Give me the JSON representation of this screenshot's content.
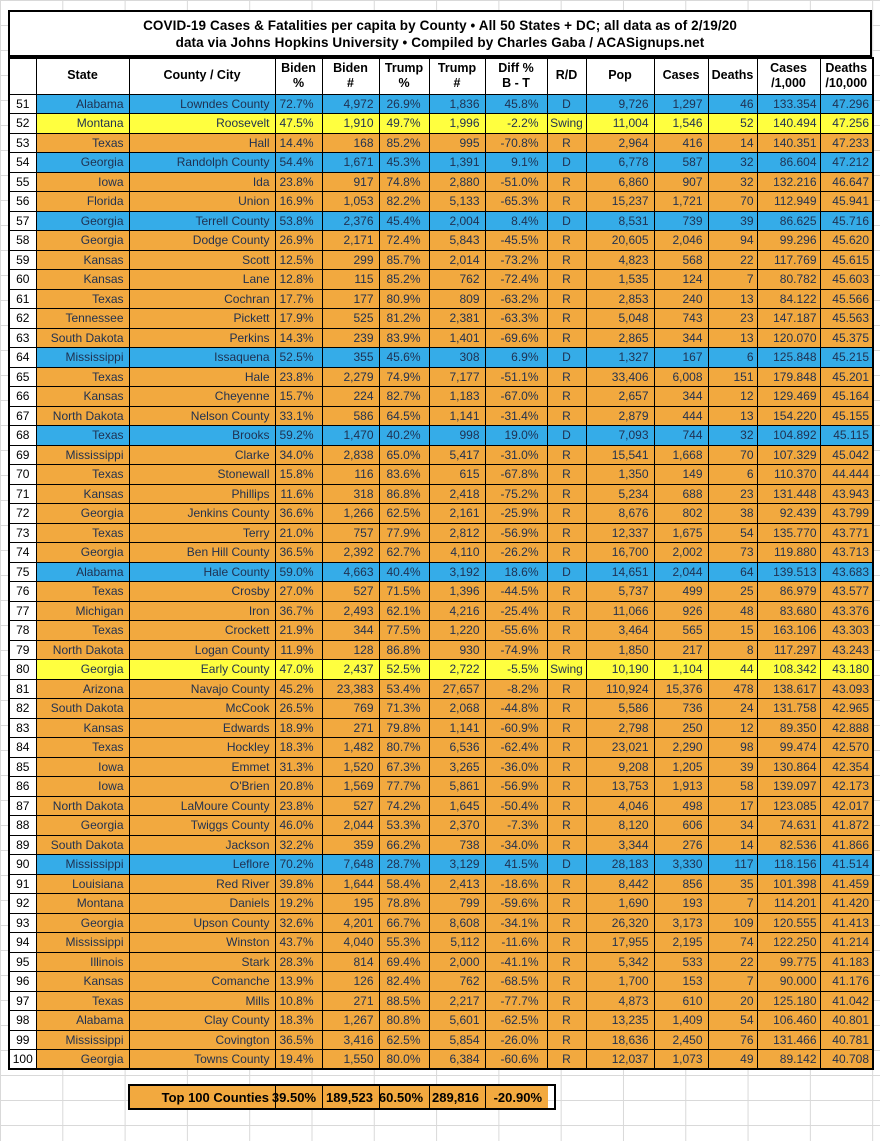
{
  "title": {
    "line1": "COVID-19 Cases & Fatalities per capita by County • All 50 States + DC; all data as of 2/19/20",
    "line2": "data via Johns Hopkins University • Compiled by Charles Gaba / ACASignups.net"
  },
  "colors": {
    "republican_orange": "#F2A93F",
    "democrat_blue": "#35ACE8",
    "swing_yellow": "#FFFF3F",
    "data_text": "#1F3050",
    "grid_line": "#D9D9D9"
  },
  "table": {
    "columns": [
      "",
      "State",
      "County / City",
      "Biden\n%",
      "Biden\n#",
      "Trump\n%",
      "Trump\n#",
      "Diff %\nB - T",
      "R/D",
      "Pop",
      "Cases",
      "Deaths",
      "Cases\n/1,000",
      "Deaths\n/10,000"
    ],
    "fields": [
      "rank",
      "state",
      "county",
      "biden_pct",
      "biden_num",
      "trump_pct",
      "trump_num",
      "diff_pct",
      "rd",
      "pop",
      "cases",
      "deaths",
      "cases_per_1000",
      "deaths_per_10000"
    ],
    "rows": [
      [
        "51",
        "Alabama",
        "Lowndes County",
        "72.7%",
        "4,972",
        "26.9%",
        "1,836",
        "45.8%",
        "D",
        "9,726",
        "1,297",
        "46",
        "133.354",
        "47.296"
      ],
      [
        "52",
        "Montana",
        "Roosevelt",
        "47.5%",
        "1,910",
        "49.7%",
        "1,996",
        "-2.2%",
        "Swing",
        "11,004",
        "1,546",
        "52",
        "140.494",
        "47.256"
      ],
      [
        "53",
        "Texas",
        "Hall",
        "14.4%",
        "168",
        "85.2%",
        "995",
        "-70.8%",
        "R",
        "2,964",
        "416",
        "14",
        "140.351",
        "47.233"
      ],
      [
        "54",
        "Georgia",
        "Randolph County",
        "54.4%",
        "1,671",
        "45.3%",
        "1,391",
        "9.1%",
        "D",
        "6,778",
        "587",
        "32",
        "86.604",
        "47.212"
      ],
      [
        "55",
        "Iowa",
        "Ida",
        "23.8%",
        "917",
        "74.8%",
        "2,880",
        "-51.0%",
        "R",
        "6,860",
        "907",
        "32",
        "132.216",
        "46.647"
      ],
      [
        "56",
        "Florida",
        "Union",
        "16.9%",
        "1,053",
        "82.2%",
        "5,133",
        "-65.3%",
        "R",
        "15,237",
        "1,721",
        "70",
        "112.949",
        "45.941"
      ],
      [
        "57",
        "Georgia",
        "Terrell County",
        "53.8%",
        "2,376",
        "45.4%",
        "2,004",
        "8.4%",
        "D",
        "8,531",
        "739",
        "39",
        "86.625",
        "45.716"
      ],
      [
        "58",
        "Georgia",
        "Dodge County",
        "26.9%",
        "2,171",
        "72.4%",
        "5,843",
        "-45.5%",
        "R",
        "20,605",
        "2,046",
        "94",
        "99.296",
        "45.620"
      ],
      [
        "59",
        "Kansas",
        "Scott",
        "12.5%",
        "299",
        "85.7%",
        "2,014",
        "-73.2%",
        "R",
        "4,823",
        "568",
        "22",
        "117.769",
        "45.615"
      ],
      [
        "60",
        "Kansas",
        "Lane",
        "12.8%",
        "115",
        "85.2%",
        "762",
        "-72.4%",
        "R",
        "1,535",
        "124",
        "7",
        "80.782",
        "45.603"
      ],
      [
        "61",
        "Texas",
        "Cochran",
        "17.7%",
        "177",
        "80.9%",
        "809",
        "-63.2%",
        "R",
        "2,853",
        "240",
        "13",
        "84.122",
        "45.566"
      ],
      [
        "62",
        "Tennessee",
        "Pickett",
        "17.9%",
        "525",
        "81.2%",
        "2,381",
        "-63.3%",
        "R",
        "5,048",
        "743",
        "23",
        "147.187",
        "45.563"
      ],
      [
        "63",
        "South Dakota",
        "Perkins",
        "14.3%",
        "239",
        "83.9%",
        "1,401",
        "-69.6%",
        "R",
        "2,865",
        "344",
        "13",
        "120.070",
        "45.375"
      ],
      [
        "64",
        "Mississippi",
        "Issaquena",
        "52.5%",
        "355",
        "45.6%",
        "308",
        "6.9%",
        "D",
        "1,327",
        "167",
        "6",
        "125.848",
        "45.215"
      ],
      [
        "65",
        "Texas",
        "Hale",
        "23.8%",
        "2,279",
        "74.9%",
        "7,177",
        "-51.1%",
        "R",
        "33,406",
        "6,008",
        "151",
        "179.848",
        "45.201"
      ],
      [
        "66",
        "Kansas",
        "Cheyenne",
        "15.7%",
        "224",
        "82.7%",
        "1,183",
        "-67.0%",
        "R",
        "2,657",
        "344",
        "12",
        "129.469",
        "45.164"
      ],
      [
        "67",
        "North Dakota",
        "Nelson County",
        "33.1%",
        "586",
        "64.5%",
        "1,141",
        "-31.4%",
        "R",
        "2,879",
        "444",
        "13",
        "154.220",
        "45.155"
      ],
      [
        "68",
        "Texas",
        "Brooks",
        "59.2%",
        "1,470",
        "40.2%",
        "998",
        "19.0%",
        "D",
        "7,093",
        "744",
        "32",
        "104.892",
        "45.115"
      ],
      [
        "69",
        "Mississippi",
        "Clarke",
        "34.0%",
        "2,838",
        "65.0%",
        "5,417",
        "-31.0%",
        "R",
        "15,541",
        "1,668",
        "70",
        "107.329",
        "45.042"
      ],
      [
        "70",
        "Texas",
        "Stonewall",
        "15.8%",
        "116",
        "83.6%",
        "615",
        "-67.8%",
        "R",
        "1,350",
        "149",
        "6",
        "110.370",
        "44.444"
      ],
      [
        "71",
        "Kansas",
        "Phillips",
        "11.6%",
        "318",
        "86.8%",
        "2,418",
        "-75.2%",
        "R",
        "5,234",
        "688",
        "23",
        "131.448",
        "43.943"
      ],
      [
        "72",
        "Georgia",
        "Jenkins County",
        "36.6%",
        "1,266",
        "62.5%",
        "2,161",
        "-25.9%",
        "R",
        "8,676",
        "802",
        "38",
        "92.439",
        "43.799"
      ],
      [
        "73",
        "Texas",
        "Terry",
        "21.0%",
        "757",
        "77.9%",
        "2,812",
        "-56.9%",
        "R",
        "12,337",
        "1,675",
        "54",
        "135.770",
        "43.771"
      ],
      [
        "74",
        "Georgia",
        "Ben Hill County",
        "36.5%",
        "2,392",
        "62.7%",
        "4,110",
        "-26.2%",
        "R",
        "16,700",
        "2,002",
        "73",
        "119.880",
        "43.713"
      ],
      [
        "75",
        "Alabama",
        "Hale County",
        "59.0%",
        "4,663",
        "40.4%",
        "3,192",
        "18.6%",
        "D",
        "14,651",
        "2,044",
        "64",
        "139.513",
        "43.683"
      ],
      [
        "76",
        "Texas",
        "Crosby",
        "27.0%",
        "527",
        "71.5%",
        "1,396",
        "-44.5%",
        "R",
        "5,737",
        "499",
        "25",
        "86.979",
        "43.577"
      ],
      [
        "77",
        "Michigan",
        "Iron",
        "36.7%",
        "2,493",
        "62.1%",
        "4,216",
        "-25.4%",
        "R",
        "11,066",
        "926",
        "48",
        "83.680",
        "43.376"
      ],
      [
        "78",
        "Texas",
        "Crockett",
        "21.9%",
        "344",
        "77.5%",
        "1,220",
        "-55.6%",
        "R",
        "3,464",
        "565",
        "15",
        "163.106",
        "43.303"
      ],
      [
        "79",
        "North Dakota",
        "Logan County",
        "11.9%",
        "128",
        "86.8%",
        "930",
        "-74.9%",
        "R",
        "1,850",
        "217",
        "8",
        "117.297",
        "43.243"
      ],
      [
        "80",
        "Georgia",
        "Early County",
        "47.0%",
        "2,437",
        "52.5%",
        "2,722",
        "-5.5%",
        "Swing",
        "10,190",
        "1,104",
        "44",
        "108.342",
        "43.180"
      ],
      [
        "81",
        "Arizona",
        "Navajo County",
        "45.2%",
        "23,383",
        "53.4%",
        "27,657",
        "-8.2%",
        "R",
        "110,924",
        "15,376",
        "478",
        "138.617",
        "43.093"
      ],
      [
        "82",
        "South Dakota",
        "McCook",
        "26.5%",
        "769",
        "71.3%",
        "2,068",
        "-44.8%",
        "R",
        "5,586",
        "736",
        "24",
        "131.758",
        "42.965"
      ],
      [
        "83",
        "Kansas",
        "Edwards",
        "18.9%",
        "271",
        "79.8%",
        "1,141",
        "-60.9%",
        "R",
        "2,798",
        "250",
        "12",
        "89.350",
        "42.888"
      ],
      [
        "84",
        "Texas",
        "Hockley",
        "18.3%",
        "1,482",
        "80.7%",
        "6,536",
        "-62.4%",
        "R",
        "23,021",
        "2,290",
        "98",
        "99.474",
        "42.570"
      ],
      [
        "85",
        "Iowa",
        "Emmet",
        "31.3%",
        "1,520",
        "67.3%",
        "3,265",
        "-36.0%",
        "R",
        "9,208",
        "1,205",
        "39",
        "130.864",
        "42.354"
      ],
      [
        "86",
        "Iowa",
        "O'Brien",
        "20.8%",
        "1,569",
        "77.7%",
        "5,861",
        "-56.9%",
        "R",
        "13,753",
        "1,913",
        "58",
        "139.097",
        "42.173"
      ],
      [
        "87",
        "North Dakota",
        "LaMoure County",
        "23.8%",
        "527",
        "74.2%",
        "1,645",
        "-50.4%",
        "R",
        "4,046",
        "498",
        "17",
        "123.085",
        "42.017"
      ],
      [
        "88",
        "Georgia",
        "Twiggs County",
        "46.0%",
        "2,044",
        "53.3%",
        "2,370",
        "-7.3%",
        "R",
        "8,120",
        "606",
        "34",
        "74.631",
        "41.872"
      ],
      [
        "89",
        "South Dakota",
        "Jackson",
        "32.2%",
        "359",
        "66.2%",
        "738",
        "-34.0%",
        "R",
        "3,344",
        "276",
        "14",
        "82.536",
        "41.866"
      ],
      [
        "90",
        "Mississippi",
        "Leflore",
        "70.2%",
        "7,648",
        "28.7%",
        "3,129",
        "41.5%",
        "D",
        "28,183",
        "3,330",
        "117",
        "118.156",
        "41.514"
      ],
      [
        "91",
        "Louisiana",
        "Red River",
        "39.8%",
        "1,644",
        "58.4%",
        "2,413",
        "-18.6%",
        "R",
        "8,442",
        "856",
        "35",
        "101.398",
        "41.459"
      ],
      [
        "92",
        "Montana",
        "Daniels",
        "19.2%",
        "195",
        "78.8%",
        "799",
        "-59.6%",
        "R",
        "1,690",
        "193",
        "7",
        "114.201",
        "41.420"
      ],
      [
        "93",
        "Georgia",
        "Upson County",
        "32.6%",
        "4,201",
        "66.7%",
        "8,608",
        "-34.1%",
        "R",
        "26,320",
        "3,173",
        "109",
        "120.555",
        "41.413"
      ],
      [
        "94",
        "Mississippi",
        "Winston",
        "43.7%",
        "4,040",
        "55.3%",
        "5,112",
        "-11.6%",
        "R",
        "17,955",
        "2,195",
        "74",
        "122.250",
        "41.214"
      ],
      [
        "95",
        "Illinois",
        "Stark",
        "28.3%",
        "814",
        "69.4%",
        "2,000",
        "-41.1%",
        "R",
        "5,342",
        "533",
        "22",
        "99.775",
        "41.183"
      ],
      [
        "96",
        "Kansas",
        "Comanche",
        "13.9%",
        "126",
        "82.4%",
        "762",
        "-68.5%",
        "R",
        "1,700",
        "153",
        "7",
        "90.000",
        "41.176"
      ],
      [
        "97",
        "Texas",
        "Mills",
        "10.8%",
        "271",
        "88.5%",
        "2,217",
        "-77.7%",
        "R",
        "4,873",
        "610",
        "20",
        "125.180",
        "41.042"
      ],
      [
        "98",
        "Alabama",
        "Clay County",
        "18.3%",
        "1,267",
        "80.8%",
        "5,601",
        "-62.5%",
        "R",
        "13,235",
        "1,409",
        "54",
        "106.460",
        "40.801"
      ],
      [
        "99",
        "Mississippi",
        "Covington",
        "36.5%",
        "3,416",
        "62.5%",
        "5,854",
        "-26.0%",
        "R",
        "18,636",
        "2,450",
        "76",
        "131.466",
        "40.781"
      ],
      [
        "100",
        "Georgia",
        "Towns County",
        "19.4%",
        "1,550",
        "80.0%",
        "6,384",
        "-60.6%",
        "R",
        "12,037",
        "1,073",
        "49",
        "89.142",
        "40.708"
      ]
    ]
  },
  "summary": {
    "label": "Top 100 Counties",
    "biden_pct": "39.50%",
    "biden_num": "189,523",
    "trump_pct": "60.50%",
    "trump_num": "289,816",
    "diff_pct": "-20.90%"
  }
}
